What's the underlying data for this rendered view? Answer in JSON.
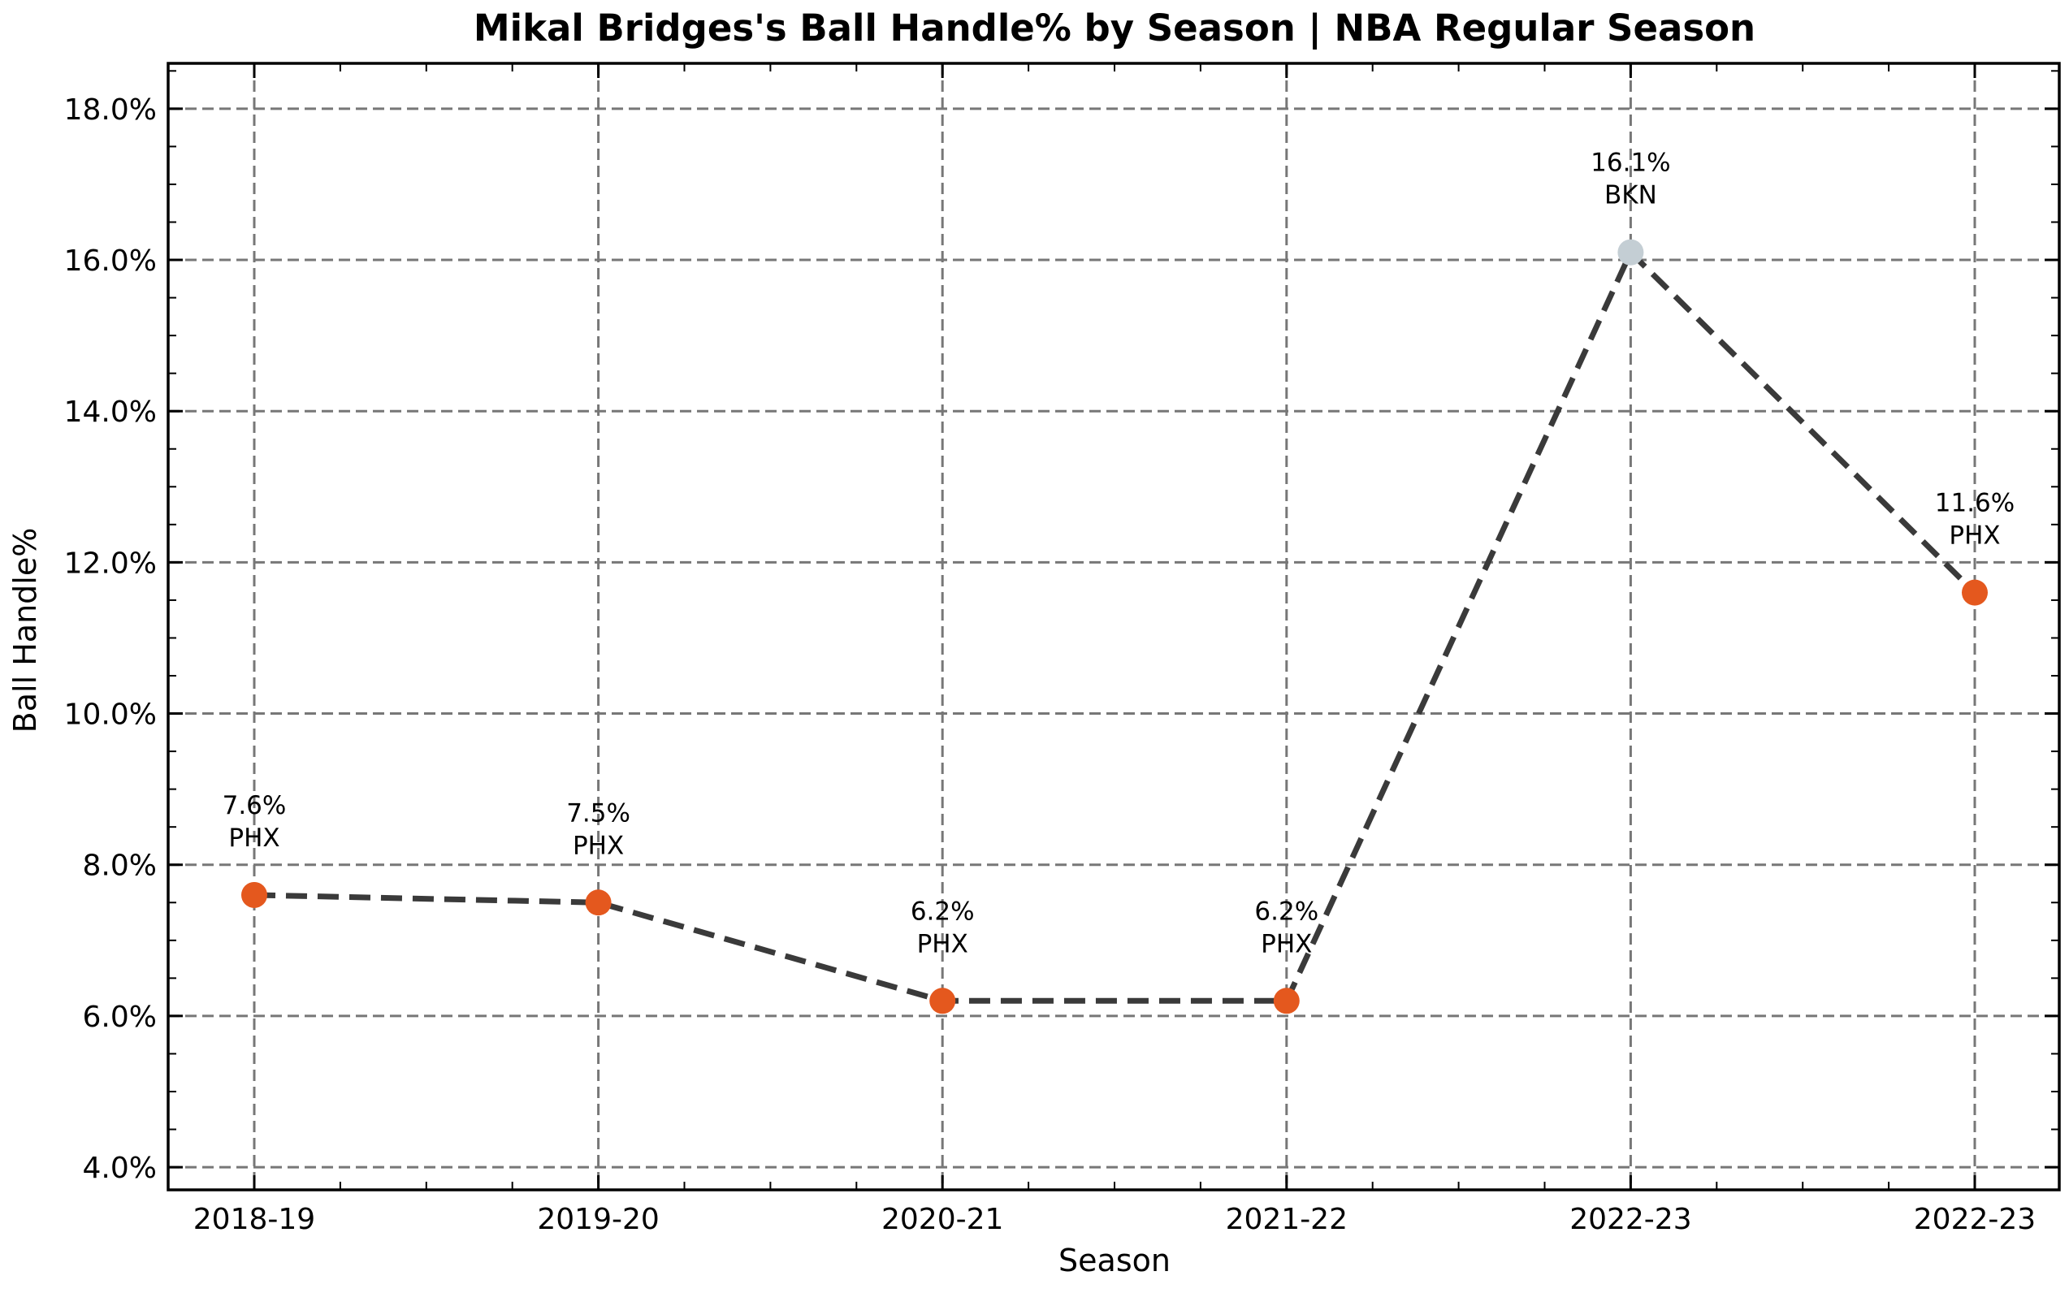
{
  "chart_data": {
    "type": "line",
    "title": "Mikal Bridges's Ball Handle% by Season | NBA Regular Season",
    "xlabel": "Season",
    "ylabel": "Ball Handle%",
    "categories": [
      "2018-19",
      "2019-20",
      "2020-21",
      "2021-22",
      "2022-23",
      "2022-23"
    ],
    "series": [
      {
        "values": [
          7.6,
          7.5,
          6.2,
          6.2,
          16.1,
          11.6
        ],
        "teams": [
          "PHX",
          "PHX",
          "PHX",
          "PHX",
          "BKN",
          "PHX"
        ],
        "point_colors": [
          "#e4581e",
          "#e4581e",
          "#e4581e",
          "#e4581e",
          "#c4ced4",
          "#e4581e"
        ],
        "line_color": "#3a3a3a",
        "line_style": "dashed"
      }
    ],
    "data_labels": [
      "7.6%",
      "7.5%",
      "6.2%",
      "6.2%",
      "16.1%",
      "11.6%"
    ],
    "ylim": [
      3.7,
      18.6
    ],
    "yticks": [
      4,
      6,
      8,
      10,
      12,
      14,
      16,
      18
    ],
    "ytick_labels": [
      "4.0%",
      "6.0%",
      "8.0%",
      "10.0%",
      "12.0%",
      "14.0%",
      "16.0%",
      "18.0%"
    ],
    "grid": true,
    "legend": "none"
  }
}
